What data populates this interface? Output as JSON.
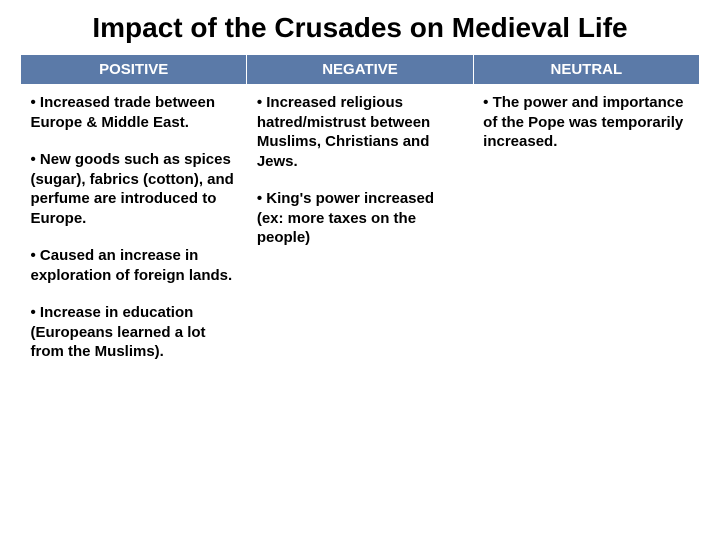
{
  "title": "Impact of the Crusades on Medieval Life",
  "table": {
    "header_bg": "#5b7aa8",
    "header_text_color": "#ffffff",
    "columns": [
      {
        "label": "POSITIVE"
      },
      {
        "label": "NEGATIVE"
      },
      {
        "label": "NEUTRAL"
      }
    ],
    "cells": {
      "positive": [
        "• Increased trade between Europe & Middle East.",
        "• New goods such as spices (sugar), fabrics (cotton), and perfume are introduced to Europe.",
        "• Caused an increase in exploration of foreign lands.",
        "• Increase in education (Europeans learned a lot from the Muslims)."
      ],
      "negative": [
        "• Increased religious hatred/mistrust between Muslims, Christians and Jews.",
        "• King's power increased (ex: more taxes on the people)"
      ],
      "neutral": [
        "• The power and importance of the Pope was temporarily increased."
      ]
    }
  }
}
